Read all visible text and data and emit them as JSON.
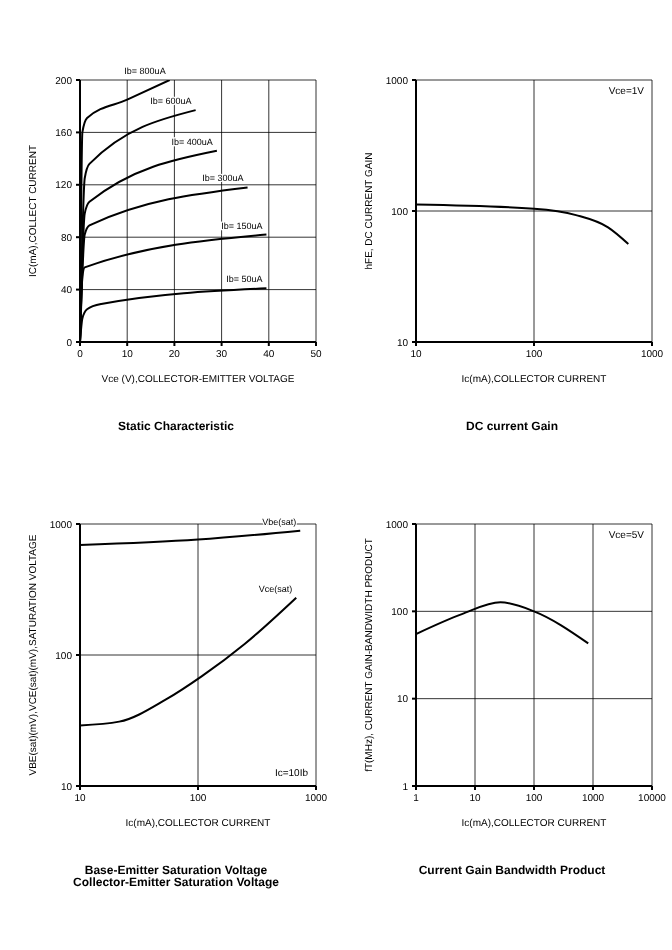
{
  "chart_data": [
    {
      "type": "line",
      "title": "Static Characteristic",
      "xlabel": "Vce (V),COLLECTOR-EMITTER VOLTAGE",
      "ylabel": "IC(mA),COLLECT CURRENT",
      "xlim": [
        0,
        50
      ],
      "xticks": [
        0,
        10,
        20,
        30,
        40,
        50
      ],
      "ylim": [
        0,
        200
      ],
      "yticks": [
        0,
        40,
        80,
        120,
        160,
        200
      ],
      "grid": true,
      "series": [
        {
          "name": "Ib= 800uA",
          "color": "#000000",
          "x": [
            0,
            0.5,
            1.5,
            10,
            19
          ],
          "values": [
            0,
            160,
            171,
            185,
            200
          ]
        },
        {
          "name": "Ib= 600uA",
          "color": "#000000",
          "x": [
            0,
            1,
            2,
            24.5
          ],
          "values": [
            0,
            125,
            136,
            177
          ]
        },
        {
          "name": "Ib= 400uA",
          "color": "#000000",
          "x": [
            0,
            1,
            2,
            29
          ],
          "values": [
            0,
            98,
            107,
            146
          ]
        },
        {
          "name": "Ib= 300uA",
          "color": "#000000",
          "x": [
            0,
            1,
            2,
            35.5
          ],
          "values": [
            0,
            82,
            89,
            118
          ]
        },
        {
          "name": "Ib= 150uA",
          "color": "#000000",
          "x": [
            0,
            0.5,
            1,
            39.5
          ],
          "values": [
            0,
            50,
            57,
            82
          ]
        },
        {
          "name": "Ib= 50uA",
          "color": "#000000",
          "x": [
            0,
            0.5,
            1.5,
            4.5,
            39.5
          ],
          "values": [
            0,
            18,
            25,
            29,
            41
          ]
        }
      ]
    },
    {
      "type": "line",
      "title": "DC current Gain",
      "xlabel": "Ic(mA),COLLECTOR CURRENT",
      "ylabel": "hFE, DC CURRENT GAIN",
      "log": "xy",
      "xlim": [
        10,
        1000
      ],
      "xticks": [
        10,
        100,
        1000
      ],
      "ylim": [
        10,
        1000
      ],
      "yticks": [
        10,
        100,
        1000
      ],
      "grid": true,
      "annotations": [
        "Vce=1V"
      ],
      "series": [
        {
          "color": "#000000",
          "x": [
            10,
            100,
            227,
            424,
            630
          ],
          "values": [
            112,
            104,
            93,
            75,
            56
          ]
        }
      ]
    },
    {
      "type": "line",
      "title": "Base-Emitter Saturation Voltage\nCollector-Emitter Saturation Voltage",
      "xlabel": "Ic(mA),COLLECTOR CURRENT",
      "ylabel": "VBE(sat)(mV),VCE(sat)(mV),SATURATION VOLTAGE",
      "log": "xy",
      "xlim": [
        10,
        1000
      ],
      "xticks": [
        10,
        100,
        1000
      ],
      "ylim": [
        10,
        1000
      ],
      "yticks": [
        10,
        100,
        1000
      ],
      "grid": true,
      "annotations": [
        "Ic=10Ib"
      ],
      "series": [
        {
          "name": "Vbe(sat)",
          "color": "#000000",
          "x": [
            10,
            100,
            735
          ],
          "values": [
            690,
            760,
            890
          ]
        },
        {
          "name": "Vce(sat)",
          "color": "#000000",
          "x": [
            10,
            21.5,
            54,
            108,
            250,
            680
          ],
          "values": [
            29,
            31,
            46,
            69,
            122,
            274
          ]
        }
      ]
    },
    {
      "type": "line",
      "title": "Current Gain Bandwidth Product",
      "xlabel": "Ic(mA),COLLECTOR CURRENT",
      "ylabel": "fT(MHz), CURRENT GAIN-BANDWIDTH PRODUCT",
      "log": "xy",
      "xlim": [
        1,
        10000
      ],
      "xticks": [
        1,
        10,
        100,
        1000,
        10000
      ],
      "ylim": [
        1,
        1000
      ],
      "yticks": [
        1,
        10,
        100,
        1000
      ],
      "grid": true,
      "annotations": [
        "Vce=5V"
      ],
      "series": [
        {
          "color": "#000000",
          "x": [
            1,
            6,
            27,
            100,
            830
          ],
          "values": [
            55,
            93,
            127,
            100,
            43
          ]
        }
      ]
    }
  ]
}
